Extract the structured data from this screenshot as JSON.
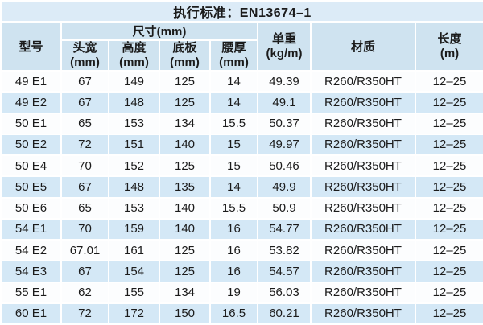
{
  "standard_title": "执行标准：EN13674–1",
  "columns": {
    "model": "型号",
    "size_group": "尺寸(mm)",
    "head_width": {
      "label": "头宽",
      "unit": "(mm)"
    },
    "height": {
      "label": "高度",
      "unit": "(mm)"
    },
    "base": {
      "label": "底板",
      "unit": "(mm)"
    },
    "web": {
      "label": "腰厚",
      "unit": "(mm)"
    },
    "weight": {
      "label": "单重",
      "unit": "(kg/m)"
    },
    "material": "材质",
    "length": {
      "label": "长度",
      "unit": "(m)"
    }
  },
  "rows": [
    {
      "model": "49 E1",
      "head_width": "67",
      "height": "149",
      "base": "125",
      "web": "14",
      "weight": "49.39",
      "material": "R260/R350HT",
      "length": "12–25"
    },
    {
      "model": "49 E2",
      "head_width": "67",
      "height": "148",
      "base": "125",
      "web": "14",
      "weight": "49.1",
      "material": "R260/R350HT",
      "length": "12–25"
    },
    {
      "model": "50 E1",
      "head_width": "65",
      "height": "153",
      "base": "134",
      "web": "15.5",
      "weight": "50.37",
      "material": "R260/R350HT",
      "length": "12–25"
    },
    {
      "model": "50 E2",
      "head_width": "72",
      "height": "151",
      "base": "140",
      "web": "15",
      "weight": "49.97",
      "material": "R260/R350HT",
      "length": "12–25"
    },
    {
      "model": "50 E4",
      "head_width": "70",
      "height": "152",
      "base": "125",
      "web": "15",
      "weight": "50.46",
      "material": "R260/R350HT",
      "length": "12–25"
    },
    {
      "model": "50 E5",
      "head_width": "67",
      "height": "148",
      "base": "135",
      "web": "14",
      "weight": "49.9",
      "material": "R260/R350HT",
      "length": "12–25"
    },
    {
      "model": "50 E6",
      "head_width": "65",
      "height": "153",
      "base": "140",
      "web": "15.5",
      "weight": "50.9",
      "material": "R260/R350HT",
      "length": "12–25"
    },
    {
      "model": "54 E1",
      "head_width": "70",
      "height": "159",
      "base": "140",
      "web": "16",
      "weight": "54.77",
      "material": "R260/R350HT",
      "length": "12–25"
    },
    {
      "model": "54 E2",
      "head_width": "67.01",
      "height": "161",
      "base": "125",
      "web": "16",
      "weight": "53.82",
      "material": "R260/R350HT",
      "length": "12–25"
    },
    {
      "model": "54 E3",
      "head_width": "67",
      "height": "154",
      "base": "125",
      "web": "16",
      "weight": "54.57",
      "material": "R260/R350HT",
      "length": "12–25"
    },
    {
      "model": "55 E1",
      "head_width": "62",
      "height": "155",
      "base": "134",
      "web": "19",
      "weight": "56.03",
      "material": "R260/R350HT",
      "length": "12–25"
    },
    {
      "model": "60 E1",
      "head_width": "72",
      "height": "172",
      "base": "150",
      "web": "16.5",
      "weight": "60.21",
      "material": "R260/R350HT",
      "length": "12–25"
    }
  ],
  "column_order": "model,head_width,height,base,web,weight,material,length",
  "colors": {
    "title_bg": "#dcebf7",
    "header_bg": "#cfe3f0",
    "row_blue": "#d4e8f6",
    "row_white": "#fcfdfe",
    "border": "#ffffff",
    "text": "#1b1b1b"
  }
}
